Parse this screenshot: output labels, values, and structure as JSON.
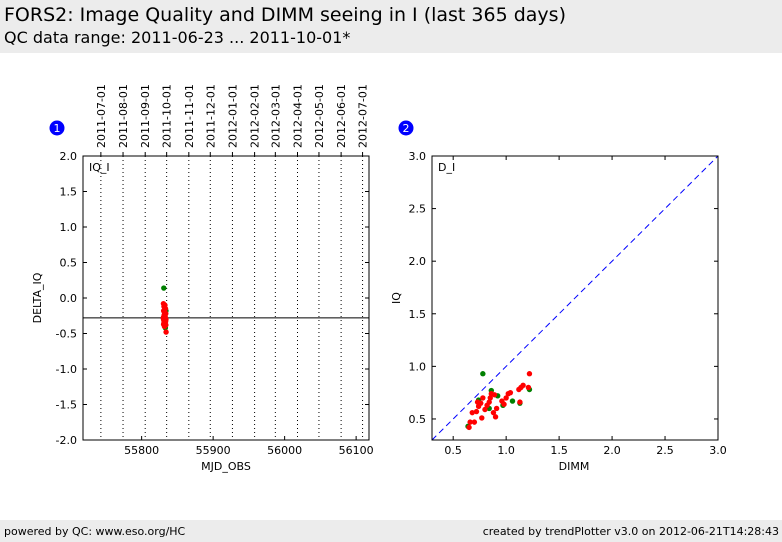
{
  "header": {
    "title": "FORS2: Image Quality and DIMM seeing in I (last 365 days)",
    "subtitle": "QC data range: 2011-06-23 ... 2011-10-01*"
  },
  "footer": {
    "left": "powered by QC: www.eso.org/HC",
    "right": "created by trendPlotter v3.0 on 2012-06-21T14:28:43"
  },
  "colors": {
    "series_red": "#ff0000",
    "series_green": "#008000",
    "reference_line": "#000000",
    "diagonal_line": "#0000ff",
    "badge": "#0000ff",
    "header_bg": "#ececec"
  },
  "chart_data": [
    {
      "type": "scatter",
      "badge": "1",
      "panel_label": "IQ_I",
      "xlabel": "MJD_OBS",
      "ylabel": "DELTA_IQ",
      "xlim": [
        55718,
        56118
      ],
      "ylim": [
        -2.0,
        2.0
      ],
      "x_ticks": [
        55800,
        55900,
        56000,
        56100
      ],
      "y_ticks": [
        -2.0,
        -1.5,
        -1.0,
        -0.5,
        0.0,
        0.5,
        1.0,
        1.5,
        2.0
      ],
      "top_date_ticks": [
        {
          "label": "2011-07-01",
          "mjd": 55743
        },
        {
          "label": "2011-08-01",
          "mjd": 55774
        },
        {
          "label": "2011-09-01",
          "mjd": 55805
        },
        {
          "label": "2011-10-01",
          "mjd": 55835
        },
        {
          "label": "2011-11-01",
          "mjd": 55866
        },
        {
          "label": "2011-12-01",
          "mjd": 55896
        },
        {
          "label": "2012-01-01",
          "mjd": 55927
        },
        {
          "label": "2012-02-01",
          "mjd": 55958
        },
        {
          "label": "2012-03-01",
          "mjd": 55987
        },
        {
          "label": "2012-04-01",
          "mjd": 56018
        },
        {
          "label": "2012-05-01",
          "mjd": 56048
        },
        {
          "label": "2012-06-01",
          "mjd": 56079
        },
        {
          "label": "2012-07-01",
          "mjd": 56109
        }
      ],
      "reference_line_y": -0.28,
      "series": [
        {
          "color": "green",
          "points": [
            [
              55831.0,
              0.14
            ],
            [
              55833.2,
              -0.42
            ],
            [
              55834.0,
              -0.18
            ],
            [
              55832.0,
              -0.33
            ]
          ]
        },
        {
          "color": "red",
          "points": [
            [
              55830.5,
              -0.08
            ],
            [
              55831.2,
              -0.12
            ],
            [
              55832.6,
              -0.1
            ],
            [
              55833.4,
              -0.15
            ],
            [
              55830.8,
              -0.18
            ],
            [
              55832.0,
              -0.2
            ],
            [
              55833.8,
              -0.22
            ],
            [
              55831.5,
              -0.24
            ],
            [
              55832.9,
              -0.26
            ],
            [
              55830.6,
              -0.27
            ],
            [
              55833.1,
              -0.28
            ],
            [
              55831.8,
              -0.29
            ],
            [
              55834.0,
              -0.3
            ],
            [
              55830.9,
              -0.31
            ],
            [
              55832.4,
              -0.32
            ],
            [
              55833.6,
              -0.33
            ],
            [
              55831.3,
              -0.34
            ],
            [
              55832.7,
              -0.35
            ],
            [
              55830.7,
              -0.37
            ],
            [
              55833.9,
              -0.38
            ],
            [
              55831.9,
              -0.4
            ],
            [
              55832.3,
              -0.26
            ],
            [
              55833.0,
              -0.21
            ],
            [
              55830.4,
              -0.29
            ],
            [
              55832.1,
              -0.13
            ],
            [
              55833.5,
              -0.31
            ],
            [
              55834.2,
              -0.48
            ],
            [
              55831.6,
              -0.36
            ]
          ]
        }
      ]
    },
    {
      "type": "scatter",
      "badge": "2",
      "panel_label": "D_I",
      "xlabel": "DIMM",
      "ylabel": "IQ",
      "xlim": [
        0.3,
        3.0
      ],
      "ylim": [
        0.3,
        3.0
      ],
      "x_ticks": [
        0.5,
        1.0,
        1.5,
        2.0,
        2.5,
        3.0
      ],
      "y_ticks": [
        0.5,
        1.0,
        1.5,
        2.0,
        2.5,
        3.0
      ],
      "diagonal": true,
      "series": [
        {
          "color": "green",
          "points": [
            [
              0.78,
              0.93
            ],
            [
              0.64,
              0.43
            ],
            [
              0.86,
              0.77
            ],
            [
              0.92,
              0.72
            ],
            [
              1.13,
              0.65
            ],
            [
              1.22,
              0.78
            ],
            [
              0.74,
              0.68
            ],
            [
              0.97,
              0.63
            ],
            [
              0.84,
              0.6
            ],
            [
              1.06,
              0.67
            ]
          ]
        },
        {
          "color": "red",
          "points": [
            [
              0.66,
              0.47
            ],
            [
              0.7,
              0.47
            ],
            [
              0.65,
              0.42
            ],
            [
              0.68,
              0.56
            ],
            [
              0.72,
              0.57
            ],
            [
              0.74,
              0.62
            ],
            [
              0.76,
              0.65
            ],
            [
              0.73,
              0.66
            ],
            [
              0.78,
              0.7
            ],
            [
              0.77,
              0.51
            ],
            [
              0.8,
              0.59
            ],
            [
              0.82,
              0.63
            ],
            [
              0.84,
              0.66
            ],
            [
              0.85,
              0.7
            ],
            [
              0.86,
              0.74
            ],
            [
              0.88,
              0.56
            ],
            [
              0.9,
              0.52
            ],
            [
              0.91,
              0.6
            ],
            [
              0.89,
              0.73
            ],
            [
              0.96,
              0.67
            ],
            [
              0.98,
              0.64
            ],
            [
              1.0,
              0.7
            ],
            [
              1.02,
              0.74
            ],
            [
              1.04,
              0.75
            ],
            [
              1.12,
              0.78
            ],
            [
              1.14,
              0.8
            ],
            [
              1.16,
              0.82
            ],
            [
              1.21,
              0.8
            ],
            [
              1.22,
              0.93
            ],
            [
              1.13,
              0.66
            ]
          ]
        }
      ]
    }
  ]
}
